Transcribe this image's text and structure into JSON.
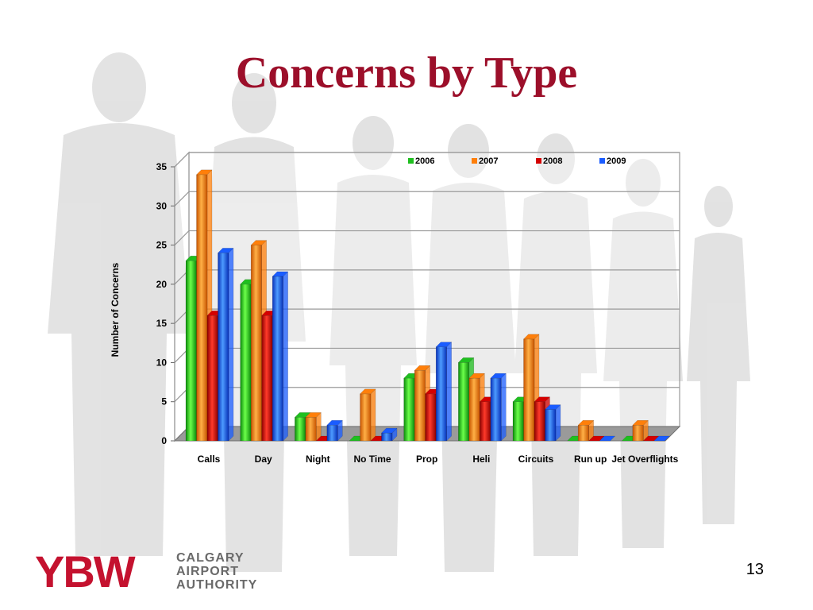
{
  "slide": {
    "title": "Concerns by Type",
    "page_number": "13"
  },
  "logo": {
    "mark": "YBW",
    "lines": [
      "CALGARY",
      "AIRPORT",
      "AUTHORITY"
    ]
  },
  "colors": {
    "title": "#9c0f2a",
    "series": [
      "#1fbf1f",
      "#ff7f0a",
      "#d40000",
      "#1a5cff"
    ]
  },
  "chart_data": {
    "type": "bar",
    "style": "3d-clustered",
    "title": "",
    "xlabel": "",
    "ylabel": "Number of Concerns",
    "ylim": [
      0,
      35
    ],
    "yticks": [
      0,
      5,
      10,
      15,
      20,
      25,
      30,
      35
    ],
    "grid": true,
    "legend": "top-right",
    "categories": [
      "Calls",
      "Day",
      "Night",
      "No Time",
      "Prop",
      "Heli",
      "Circuits",
      "Run up",
      "Jet Overflights"
    ],
    "series": [
      {
        "name": "2006",
        "values": [
          23,
          20,
          3,
          0,
          8,
          10,
          5,
          0,
          0
        ]
      },
      {
        "name": "2007",
        "values": [
          34,
          25,
          3,
          6,
          9,
          8,
          13,
          2,
          2
        ]
      },
      {
        "name": "2008",
        "values": [
          16,
          16,
          0,
          0,
          6,
          5,
          5,
          0,
          0
        ]
      },
      {
        "name": "2009",
        "values": [
          24,
          21,
          2,
          1,
          12,
          8,
          4,
          0,
          0
        ]
      }
    ]
  }
}
